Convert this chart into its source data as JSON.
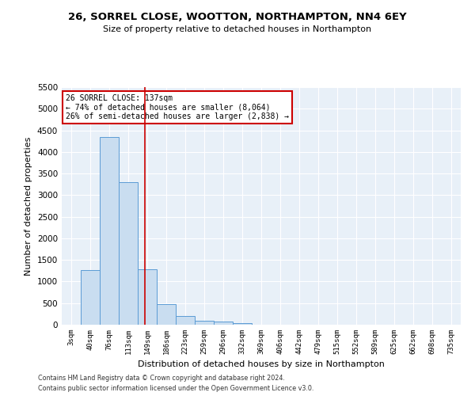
{
  "title": "26, SORREL CLOSE, WOOTTON, NORTHAMPTON, NN4 6EY",
  "subtitle": "Size of property relative to detached houses in Northampton",
  "xlabel": "Distribution of detached houses by size in Northampton",
  "ylabel": "Number of detached properties",
  "categories": [
    "3sqm",
    "40sqm",
    "76sqm",
    "113sqm",
    "149sqm",
    "186sqm",
    "223sqm",
    "259sqm",
    "296sqm",
    "332sqm",
    "369sqm",
    "406sqm",
    "442sqm",
    "479sqm",
    "515sqm",
    "552sqm",
    "589sqm",
    "625sqm",
    "662sqm",
    "698sqm",
    "735sqm"
  ],
  "bar_heights": [
    0,
    1270,
    4350,
    3300,
    1280,
    480,
    210,
    90,
    65,
    45,
    0,
    0,
    0,
    0,
    0,
    0,
    0,
    0,
    0,
    0,
    0
  ],
  "bar_color": "#c9ddf0",
  "bar_edgecolor": "#5b9bd5",
  "background_color": "#e8f0f8",
  "grid_color": "#ffffff",
  "ylim": [
    0,
    5500
  ],
  "yticks": [
    0,
    500,
    1000,
    1500,
    2000,
    2500,
    3000,
    3500,
    4000,
    4500,
    5000,
    5500
  ],
  "property_line_x": 3.87,
  "annotation_text_line1": "26 SORREL CLOSE: 137sqm",
  "annotation_text_line2": "← 74% of detached houses are smaller (8,064)",
  "annotation_text_line3": "26% of semi-detached houses are larger (2,838) →",
  "annotation_box_facecolor": "#ffffff",
  "annotation_box_edgecolor": "#cc0000",
  "redline_color": "#cc0000",
  "footer_line1": "Contains HM Land Registry data © Crown copyright and database right 2024.",
  "footer_line2": "Contains public sector information licensed under the Open Government Licence v3.0."
}
